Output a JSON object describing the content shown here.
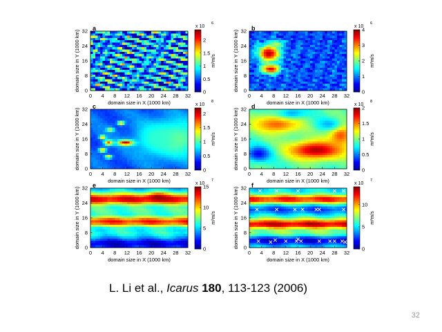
{
  "citation": {
    "authors": "L. Li et al., ",
    "journal": "Icarus",
    "volume": "180",
    "pages_year": ", 113-123 (2006)"
  },
  "page_number": "32",
  "colorscale": [
    "#00008f",
    "#0000ff",
    "#0080ff",
    "#00ffff",
    "#80ff80",
    "#ffff00",
    "#ff8000",
    "#ff0000",
    "#800000"
  ],
  "chart_data": [
    {
      "type": "heatmap",
      "panel_label": "a",
      "xlabel": "domain size in X (1000 km)",
      "ylabel": "domain size in Y (1000 km)",
      "x_ticks": [
        0,
        4,
        8,
        12,
        16,
        20,
        24,
        28,
        32
      ],
      "y_ticks": [
        0,
        8,
        16,
        24,
        32
      ],
      "xlim": [
        0,
        32
      ],
      "ylim": [
        0,
        32
      ],
      "colorbar": {
        "ticks": [
          0,
          0.5,
          1,
          1.5,
          2
        ],
        "tick_labels": [
          "0",
          "0.5",
          "1",
          "1.5",
          "2"
        ],
        "range": [
          0,
          2.4
        ],
        "multiplier": "x 10",
        "exponent": "6",
        "unit": "m²m/s"
      },
      "pattern": "fine",
      "blobs": []
    },
    {
      "type": "heatmap",
      "panel_label": "b",
      "xlabel": "domain size in X (1000 km)",
      "ylabel": "domain size in Y (1000 km)",
      "x_ticks": [
        0,
        4,
        8,
        12,
        16,
        20,
        24,
        28,
        32
      ],
      "y_ticks": [
        0,
        8,
        16,
        24,
        32
      ],
      "xlim": [
        0,
        32
      ],
      "ylim": [
        0,
        32
      ],
      "colorbar": {
        "ticks": [
          0,
          1,
          2,
          3,
          4
        ],
        "tick_labels": [
          "0",
          "1",
          "2",
          "3",
          "4"
        ],
        "range": [
          0,
          4
        ],
        "multiplier": "x 10",
        "exponent": "6",
        "unit": "m²m/s"
      },
      "pattern": "blue-noise",
      "blobs": [
        {
          "x": 6.5,
          "y": 20,
          "rx": 3.5,
          "ry": 4.5,
          "level": 0.95
        },
        {
          "x": 7,
          "y": 11.5,
          "rx": 3,
          "ry": 2.5,
          "level": 0.9
        },
        {
          "x": 9,
          "y": 25,
          "rx": 2,
          "ry": 2,
          "level": 0.55
        }
      ]
    },
    {
      "type": "heatmap",
      "panel_label": "c",
      "xlabel": "domain size in X (1000 km)",
      "ylabel": "domain size in Y (1000 km)",
      "x_ticks": [
        0,
        4,
        8,
        12,
        16,
        20,
        24,
        28,
        32
      ],
      "y_ticks": [
        0,
        8,
        16,
        24,
        32
      ],
      "xlim": [
        0,
        32
      ],
      "ylim": [
        0,
        32
      ],
      "colorbar": {
        "ticks": [
          0,
          0.5,
          1,
          1.5,
          2
        ],
        "tick_labels": [
          "0",
          "0.5",
          "1",
          "1.5",
          "2"
        ],
        "range": [
          0,
          2.2
        ],
        "multiplier": "x 10",
        "exponent": "8",
        "unit": "m²m/s"
      },
      "pattern": "smooth",
      "base": 0.22,
      "blobs": [
        {
          "x": 28,
          "y": 16,
          "rx": 9,
          "ry": 10,
          "level": 0.5
        },
        {
          "x": 22,
          "y": 16,
          "rx": 7,
          "ry": 8,
          "level": 0.42
        },
        {
          "x": 11.5,
          "y": 14,
          "rx": 2.5,
          "ry": 1.4,
          "level": 0.95
        },
        {
          "x": 6,
          "y": 14,
          "rx": 1.4,
          "ry": 1.4,
          "level": 0.8
        },
        {
          "x": 4,
          "y": 17,
          "rx": 1,
          "ry": 1,
          "level": 0.75
        },
        {
          "x": 4,
          "y": 10,
          "rx": 1.2,
          "ry": 1.2,
          "level": 0.7
        },
        {
          "x": 10,
          "y": 24.5,
          "rx": 1.1,
          "ry": 1.1,
          "level": 0.75
        },
        {
          "x": 6.5,
          "y": 21,
          "rx": 1.2,
          "ry": 1.2,
          "level": 0.6
        },
        {
          "x": 6,
          "y": 6.5,
          "rx": 1.2,
          "ry": 1,
          "level": 0.65
        }
      ]
    },
    {
      "type": "heatmap",
      "panel_label": "d",
      "xlabel": "domain size in X (1000 km)",
      "ylabel": "domain size in Y (1000 km)",
      "x_ticks": [
        0,
        4,
        8,
        12,
        16,
        20,
        24,
        28,
        32
      ],
      "y_ticks": [
        0,
        8,
        16,
        24,
        32
      ],
      "xlim": [
        0,
        32
      ],
      "ylim": [
        0,
        32
      ],
      "colorbar": {
        "ticks": [
          0,
          0.5,
          1,
          1.5,
          2
        ],
        "tick_labels": [
          "0",
          "0.5",
          "1",
          "1.5",
          "2"
        ],
        "range": [
          0,
          2
        ],
        "multiplier": "x 10",
        "exponent": "8",
        "unit": "m²m/s"
      },
      "pattern": "smooth",
      "base": 0.45,
      "blobs": [
        {
          "x": 22,
          "y": 10,
          "rx": 9,
          "ry": 5,
          "level": 0.95
        },
        {
          "x": 9,
          "y": 24,
          "rx": 8,
          "ry": 5,
          "level": 0.78
        },
        {
          "x": 30,
          "y": 18,
          "rx": 4,
          "ry": 6,
          "level": 0.8
        },
        {
          "x": 3,
          "y": 8,
          "rx": 4,
          "ry": 4,
          "level": 0.12
        },
        {
          "x": 14,
          "y": 30,
          "rx": 5,
          "ry": 3,
          "level": 0.3
        },
        {
          "x": 26,
          "y": 24,
          "rx": 4,
          "ry": 3,
          "level": 0.3
        }
      ]
    },
    {
      "type": "heatmap",
      "panel_label": "e",
      "xlabel": "domain size in X (1000 km)",
      "ylabel": "domain size in Y (1000 km)",
      "x_ticks": [
        0,
        4,
        8,
        12,
        16,
        20,
        24,
        28,
        32
      ],
      "y_ticks": [
        0,
        8,
        16,
        24,
        32
      ],
      "xlim": [
        0,
        32
      ],
      "ylim": [
        0,
        32
      ],
      "colorbar": {
        "ticks": [
          0,
          5,
          10,
          15
        ],
        "tick_labels": [
          "0",
          "5",
          "10",
          "15"
        ],
        "range": [
          0,
          15
        ],
        "multiplier": "x 10",
        "exponent": "7",
        "unit": "m²m/s"
      },
      "pattern": "bands",
      "bands": [
        {
          "y": 26,
          "width": 3.5,
          "level": 0.9
        },
        {
          "y": 14,
          "width": 3,
          "level": 0.85
        },
        {
          "y": 20,
          "width": 2.5,
          "level": 0.45
        },
        {
          "y": 8,
          "width": 2.5,
          "level": 0.4
        },
        {
          "y": 2,
          "width": 2.5,
          "level": 0.08
        }
      ],
      "base": 0.28,
      "blobs": [
        {
          "x": 22,
          "y": 27,
          "rx": 3,
          "ry": 2,
          "level": 0.98
        }
      ]
    },
    {
      "type": "heatmap",
      "panel_label": "f",
      "xlabel": "domain size in X (1000 km)",
      "ylabel": "domain size in Y (1000 km)",
      "x_ticks": [
        0,
        4,
        8,
        12,
        16,
        20,
        24,
        28,
        32
      ],
      "y_ticks": [
        0,
        8,
        16,
        24,
        32
      ],
      "xlim": [
        0,
        32
      ],
      "ylim": [
        0,
        32
      ],
      "colorbar": {
        "ticks": [
          0,
          5,
          10
        ],
        "tick_labels": [
          "0",
          "5",
          "10"
        ],
        "range": [
          0,
          14
        ],
        "multiplier": "x 10",
        "exponent": "7",
        "unit": "m²m/s"
      },
      "pattern": "bands",
      "bands": [
        {
          "y": 26,
          "width": 2.5,
          "level": 0.85
        },
        {
          "y": 12.5,
          "width": 3,
          "level": 0.92
        },
        {
          "y": 20.5,
          "width": 2,
          "level": 0.2
        },
        {
          "y": 4,
          "width": 2.5,
          "level": 0.08
        },
        {
          "y": 8,
          "width": 2,
          "level": 0.5
        }
      ],
      "base": 0.35,
      "blobs": [],
      "markers": [
        [
          3.5,
          30.5
        ],
        [
          9,
          30.5
        ],
        [
          16,
          30.5
        ],
        [
          28,
          30.5
        ],
        [
          31,
          30.5
        ],
        [
          2.5,
          20.5
        ],
        [
          9,
          20.5
        ],
        [
          15,
          20.5
        ],
        [
          17.5,
          20.5
        ],
        [
          22,
          20.5
        ],
        [
          23,
          20.5
        ],
        [
          31,
          20.5
        ],
        [
          3,
          3.5
        ],
        [
          7,
          3
        ],
        [
          8.5,
          4
        ],
        [
          12,
          3.5
        ],
        [
          15.5,
          3.5
        ],
        [
          16,
          4.5
        ],
        [
          17,
          3.5
        ],
        [
          23,
          3.5
        ],
        [
          26.5,
          3.5
        ],
        [
          28,
          3.5
        ],
        [
          30.5,
          3.5
        ],
        [
          31.5,
          3
        ]
      ]
    }
  ]
}
